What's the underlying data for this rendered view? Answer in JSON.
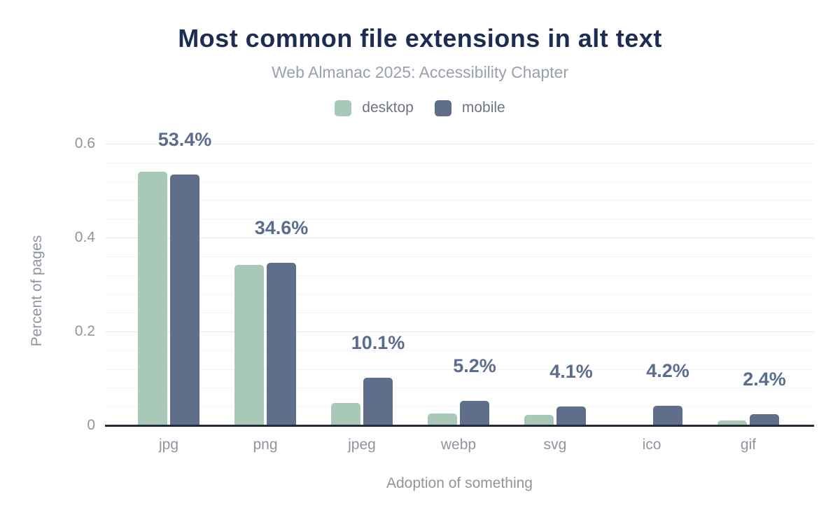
{
  "chart_data": {
    "type": "bar",
    "title": "Most common file extensions in alt text",
    "subtitle": "Web Almanac 2025: Accessibility Chapter",
    "xlabel": "Adoption of something",
    "ylabel": "Percent of pages",
    "categories": [
      "jpg",
      "png",
      "jpeg",
      "webp",
      "svg",
      "ico",
      "gif"
    ],
    "series": [
      {
        "name": "desktop",
        "color": "#a8c9b8",
        "values": [
          0.54,
          0.342,
          0.048,
          0.026,
          0.023,
          0,
          0.01
        ]
      },
      {
        "name": "mobile",
        "color": "#5f6f8b",
        "values": [
          0.534,
          0.346,
          0.101,
          0.052,
          0.041,
          0.042,
          0.024
        ]
      }
    ],
    "data_labels": [
      "53.4%",
      "34.6%",
      "10.1%",
      "5.2%",
      "4.1%",
      "4.2%",
      "2.4%"
    ],
    "data_labels_series": "mobile",
    "ylim": [
      0,
      0.62
    ],
    "yticks": [
      0,
      0.2,
      0.4,
      0.6
    ],
    "ytick_labels": [
      "0",
      "0.2",
      "0.4",
      "0.6"
    ],
    "minor_grid_step": 0.04,
    "grid": "horizontal",
    "legend_position": "top",
    "colors": {
      "title": "#1c2d51",
      "subtitle": "#9aa1ab",
      "axis_text": "#8f959e",
      "legend_text": "#6e7580",
      "data_label": "#5a6d8f",
      "grid_minor": "#f3f4f6",
      "grid_major": "#e4e7eb",
      "axis_line": "#222b3a",
      "background": "#ffffff"
    }
  }
}
